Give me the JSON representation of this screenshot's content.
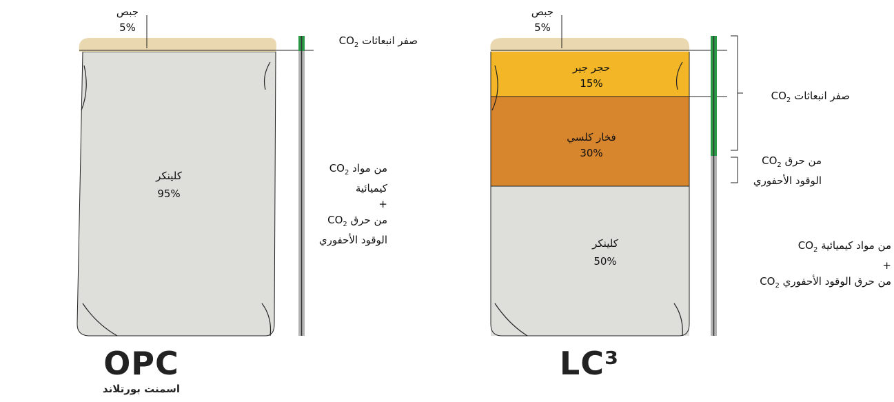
{
  "opc": {
    "gypsum": {
      "name": "جبص",
      "share": "5%"
    },
    "clinker": {
      "name": "كلينكر",
      "share": "95%"
    },
    "zero_emissions": {
      "lines": [
        {
          "text": "صفر انبعاثات",
          "formula": "CO",
          "subscript": "2"
        }
      ]
    },
    "emissions": {
      "lines": [
        {
          "text": "من مواد",
          "formula": "CO",
          "subscript": "2"
        },
        "كيميائية",
        "+",
        {
          "text": "من حرق",
          "formula": "CO",
          "subscript": "2"
        },
        "الوقود الأحفوري"
      ]
    },
    "logo": "OPC",
    "caption": "اسمنت بورتلاند"
  },
  "lc3": {
    "gypsum": {
      "name": "جبص",
      "share": "5%"
    },
    "limestone": {
      "name": "حجر جير",
      "share": "15%"
    },
    "calcined_clay": {
      "name": "فخار كلسي",
      "share": "30%"
    },
    "clinker": {
      "name": "كلينكر",
      "share": "50%"
    },
    "zero_emissions": {
      "lines": [
        {
          "text": "صفر انبعاثات",
          "formula": "CO",
          "subscript": "2"
        }
      ]
    },
    "fuel_emissions": {
      "lines": [
        {
          "text": "من حرق",
          "formula": "CO",
          "subscript": "2"
        },
        "الوقود الأحفوري"
      ]
    },
    "emissions": {
      "lines": [
        {
          "text": "من مواد كيميائية",
          "formula": "CO",
          "subscript": "2"
        },
        "+",
        {
          "text": "من حرق الوقود الأحفوري",
          "formula": "CO",
          "subscript": "2"
        }
      ]
    },
    "logo": "LC³"
  }
}
